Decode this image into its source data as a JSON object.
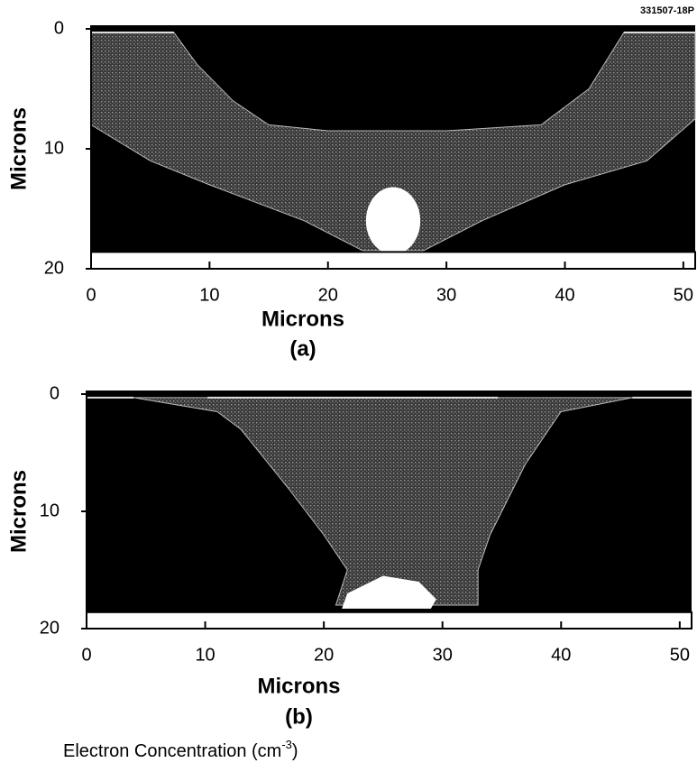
{
  "figure_id": "331507-18P",
  "footer": {
    "text": "Electron Concentration (cm",
    "superscript": "-3",
    "close": ")"
  },
  "chart_data": [
    {
      "type": "image",
      "caption": "(a)",
      "xlabel": "Microns",
      "ylabel": "Microns",
      "xlim": [
        0,
        51
      ],
      "xticks": [
        0,
        10,
        20,
        30,
        40,
        50
      ],
      "ylim": [
        0,
        20
      ],
      "yticks": [
        0,
        10,
        20
      ],
      "invert_y": true
    },
    {
      "type": "image",
      "caption": "(b)",
      "xlabel": "Microns",
      "ylabel": "Microns",
      "xlim": [
        0,
        51
      ],
      "xticks": [
        0,
        10,
        20,
        30,
        40,
        50
      ],
      "ylim": [
        0,
        20
      ],
      "yticks": [
        0,
        10,
        20
      ],
      "invert_y": true
    }
  ]
}
